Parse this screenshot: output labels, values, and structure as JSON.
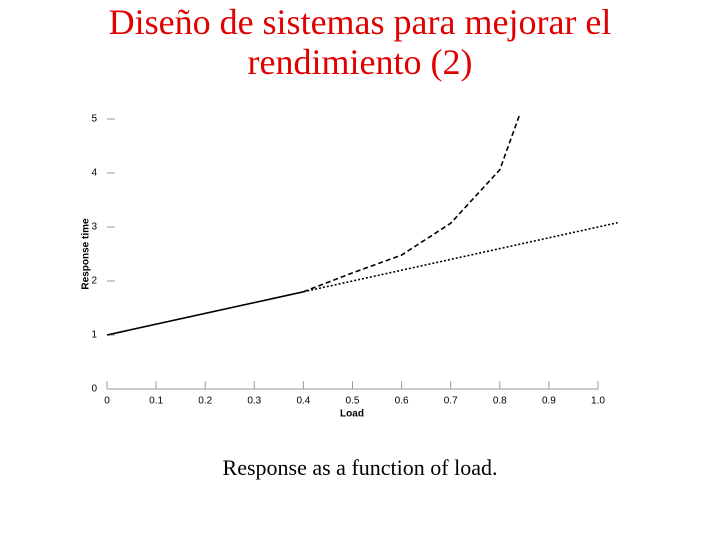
{
  "chart_data": {
    "type": "line",
    "title": "Diseño de sistemas para mejorar el rendimiento (2)",
    "caption": "Response as a function of load.",
    "x_label": "Load",
    "y_label": "Response time",
    "xlim": [
      0,
      1
    ],
    "ylim": [
      0,
      5
    ],
    "xticks": [
      0,
      0.1,
      0.2,
      0.3,
      0.4,
      0.5,
      0.6,
      0.7,
      0.8,
      0.9,
      {
        "value": 1,
        "label": "1.0"
      }
    ],
    "yticks": [
      0,
      1,
      2,
      3,
      4,
      5
    ],
    "series": [
      {
        "color": "#000000",
        "dash": "solid",
        "x": [
          0,
          0.4
        ],
        "values": [
          1,
          1.8
        ]
      },
      {
        "color": "#000000",
        "dash": "dotted",
        "x": [
          0.4,
          1.04
        ],
        "values": [
          1.8,
          3.08
        ]
      },
      {
        "color": "#000000",
        "dash": "dashed",
        "x": [
          0.4,
          0.5,
          0.6,
          0.7,
          0.8,
          0.84
        ],
        "values": [
          1.8,
          2.15,
          2.48,
          3.07,
          4.06,
          5.07
        ]
      }
    ]
  }
}
